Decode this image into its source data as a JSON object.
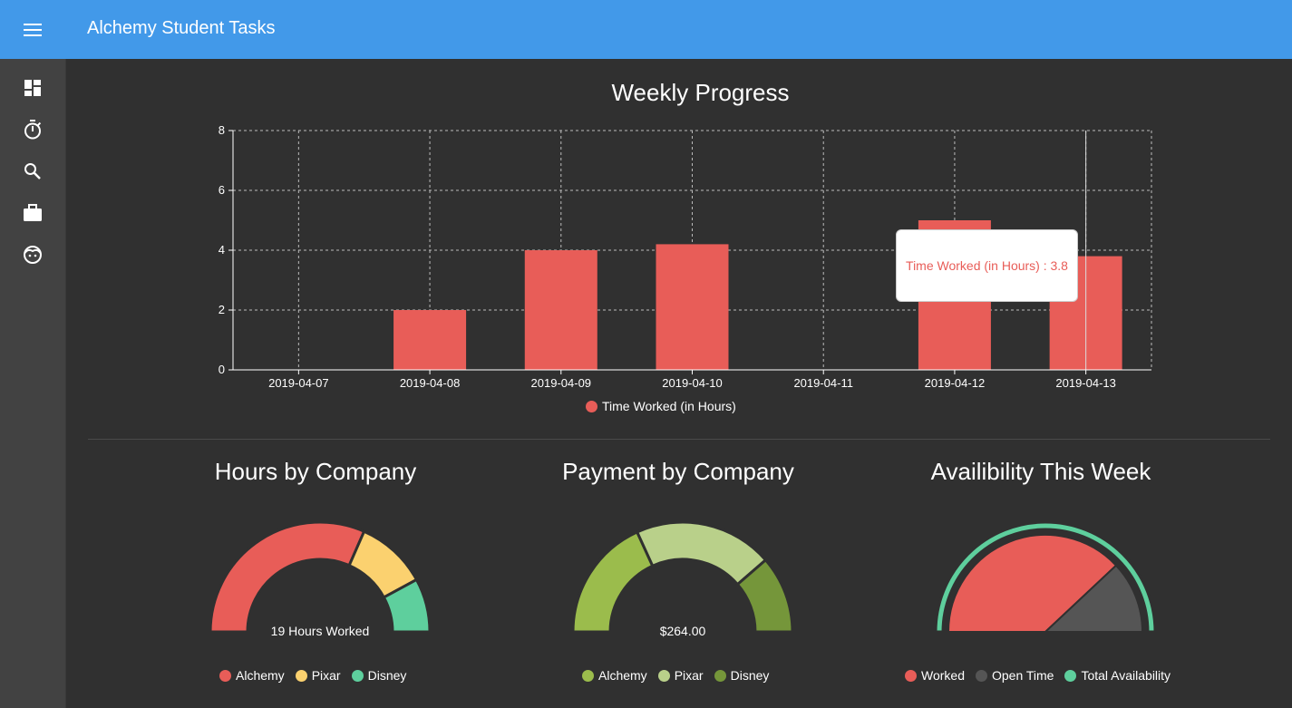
{
  "app": {
    "title": "Alchemy Student Tasks"
  },
  "sidebar": {
    "items": [
      {
        "icon": "dashboard-icon"
      },
      {
        "icon": "timer-icon"
      },
      {
        "icon": "search-icon"
      },
      {
        "icon": "briefcase-icon"
      },
      {
        "icon": "face-icon"
      }
    ]
  },
  "weekly": {
    "title": "Weekly Progress",
    "tooltip": "Time Worked (in Hours) : 3.8"
  },
  "hours": {
    "title": "Hours by Company",
    "center_label": "19 Hours Worked"
  },
  "payment": {
    "title": "Payment by Company",
    "center_label": "$264.00"
  },
  "availability": {
    "title": "Availibility This Week"
  },
  "colors": {
    "topbar": "#4299e9",
    "bar": "#e85d58",
    "pixar_yellow": "#fbd16f",
    "disney_teal": "#5ecf9d",
    "green_1": "#9bbc4c",
    "green_2": "#b9d08a",
    "green_3": "#75963a",
    "open_time": "#555555"
  },
  "chart_data": [
    {
      "type": "bar",
      "title": "Weekly Progress",
      "categories": [
        "2019-04-07",
        "2019-04-08",
        "2019-04-09",
        "2019-04-10",
        "2019-04-11",
        "2019-04-12",
        "2019-04-13"
      ],
      "series": [
        {
          "name": "Time Worked (in Hours)",
          "values": [
            0,
            2,
            4,
            4.2,
            0,
            5,
            3.8
          ]
        }
      ],
      "yticks": [
        "0",
        "2",
        "4",
        "6",
        "8"
      ],
      "ylim": [
        0,
        8
      ],
      "grid": true,
      "legend": "bottom"
    },
    {
      "type": "pie",
      "title": "Hours by Company",
      "labels": [
        "Alchemy",
        "Pixar",
        "Disney"
      ],
      "values": [
        12,
        4,
        3
      ],
      "center_label": "19 Hours Worked",
      "legend": "bottom"
    },
    {
      "type": "pie",
      "title": "Payment by Company",
      "labels": [
        "Alchemy",
        "Pixar",
        "Disney"
      ],
      "values": [
        96,
        108,
        60
      ],
      "center_label": "$264.00",
      "legend": "bottom"
    },
    {
      "type": "pie",
      "title": "Availibility This Week",
      "labels": [
        "Worked",
        "Open Time",
        "Total Availability"
      ],
      "values": [
        19,
        6,
        25
      ],
      "legend": "bottom"
    }
  ]
}
